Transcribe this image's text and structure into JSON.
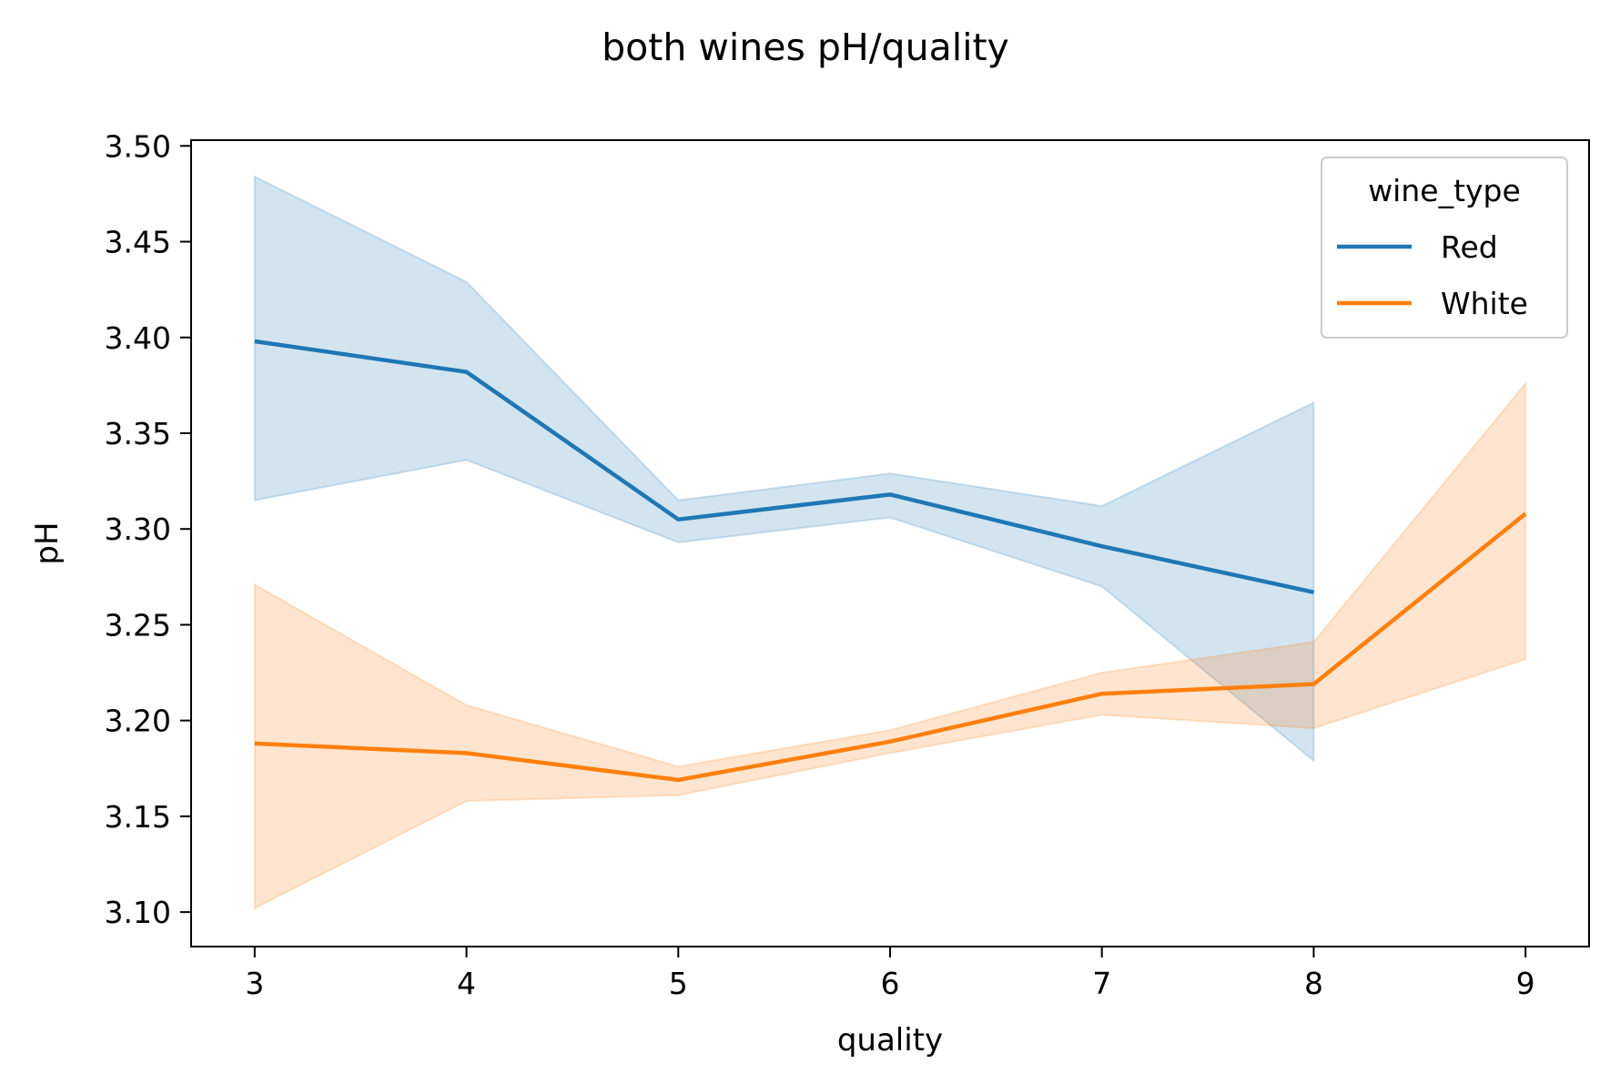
{
  "chart_data": {
    "type": "line",
    "title": "both wines pH/quality",
    "xlabel": "quality",
    "ylabel": "pH",
    "xlim": [
      2.7,
      9.3
    ],
    "ylim": [
      3.082,
      3.503
    ],
    "xticks": [
      3,
      4,
      5,
      6,
      7,
      8,
      9
    ],
    "xtick_labels": [
      "3",
      "4",
      "5",
      "6",
      "7",
      "8",
      "9"
    ],
    "yticks": [
      3.1,
      3.15,
      3.2,
      3.25,
      3.3,
      3.35,
      3.4,
      3.45,
      3.5
    ],
    "ytick_labels": [
      "3.10",
      "3.15",
      "3.20",
      "3.25",
      "3.30",
      "3.35",
      "3.40",
      "3.45",
      "3.50"
    ],
    "grid": false,
    "legend": {
      "title": "wine_type",
      "placement": "top-right"
    },
    "series": [
      {
        "name": "Red",
        "color": "#1f77b4",
        "x": [
          3,
          4,
          5,
          6,
          7,
          8
        ],
        "y": [
          3.398,
          3.382,
          3.305,
          3.318,
          3.291,
          3.267
        ],
        "ci_low": [
          3.315,
          3.336,
          3.293,
          3.306,
          3.27,
          3.179
        ],
        "ci_high": [
          3.484,
          3.429,
          3.315,
          3.329,
          3.312,
          3.366
        ]
      },
      {
        "name": "White",
        "color": "#ff7f0e",
        "x": [
          3,
          4,
          5,
          6,
          7,
          8,
          9
        ],
        "y": [
          3.188,
          3.183,
          3.169,
          3.189,
          3.214,
          3.219,
          3.308
        ],
        "ci_low": [
          3.102,
          3.158,
          3.161,
          3.183,
          3.203,
          3.196,
          3.232
        ],
        "ci_high": [
          3.271,
          3.208,
          3.176,
          3.195,
          3.225,
          3.241,
          3.376
        ]
      }
    ]
  }
}
